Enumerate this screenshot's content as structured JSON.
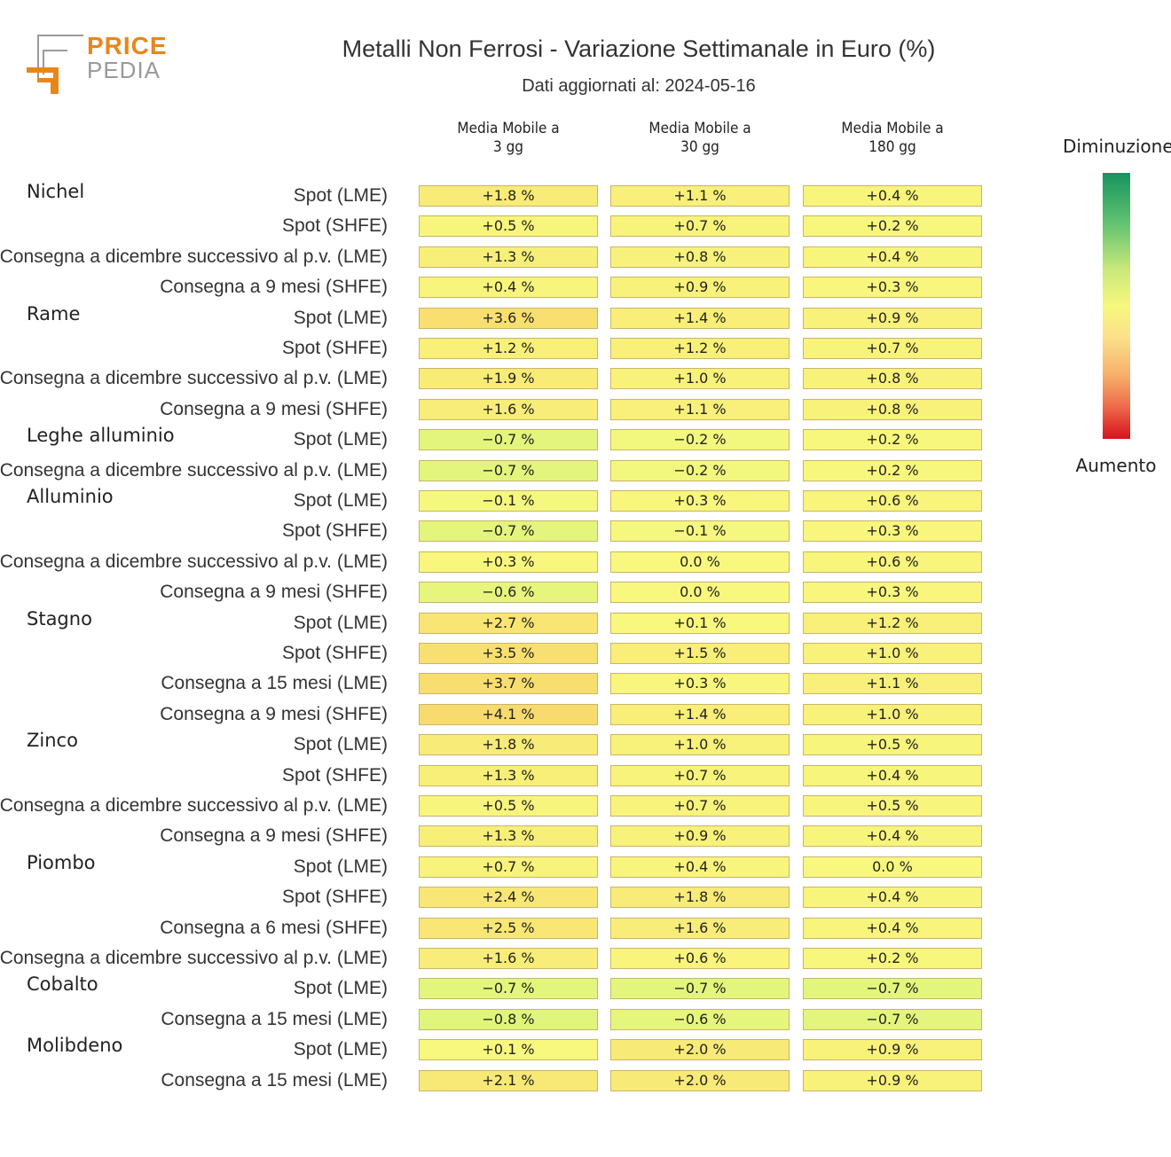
{
  "logo": {
    "line1": "PRICE",
    "line2": "PEDIA"
  },
  "chart_data": {
    "type": "table",
    "title": "Metalli Non Ferrosi - Variazione Settimanale in Euro (%)",
    "subtitle": "Dati aggiornati al: 2024-05-16",
    "columns": [
      "Media Mobile a\n3 gg",
      "Media Mobile a\n30 gg",
      "Media Mobile a\n180 gg"
    ],
    "legend": {
      "top": "Diminuzione",
      "bottom": "Aumento"
    },
    "rows": [
      {
        "group": "Nichel",
        "label": "Spot (LME)",
        "values": [
          "+1.8 %",
          "+1.1 %",
          "+0.4 %"
        ],
        "nums": [
          1.8,
          1.1,
          0.4
        ]
      },
      {
        "group": "",
        "label": "Spot (SHFE)",
        "values": [
          "+0.5 %",
          "+0.7 %",
          "+0.2 %"
        ],
        "nums": [
          0.5,
          0.7,
          0.2
        ]
      },
      {
        "group": "",
        "label": "Consegna a dicembre successivo al p.v. (LME)",
        "values": [
          "+1.3 %",
          "+0.8 %",
          "+0.4 %"
        ],
        "nums": [
          1.3,
          0.8,
          0.4
        ]
      },
      {
        "group": "",
        "label": "Consegna a 9 mesi (SHFE)",
        "values": [
          "+0.4 %",
          "+0.9 %",
          "+0.3 %"
        ],
        "nums": [
          0.4,
          0.9,
          0.3
        ]
      },
      {
        "group": "Rame",
        "label": "Spot (LME)",
        "values": [
          "+3.6 %",
          "+1.4 %",
          "+0.9 %"
        ],
        "nums": [
          3.6,
          1.4,
          0.9
        ]
      },
      {
        "group": "",
        "label": "Spot (SHFE)",
        "values": [
          "+1.2 %",
          "+1.2 %",
          "+0.7 %"
        ],
        "nums": [
          1.2,
          1.2,
          0.7
        ]
      },
      {
        "group": "",
        "label": "Consegna a dicembre successivo al p.v. (LME)",
        "values": [
          "+1.9 %",
          "+1.0 %",
          "+0.8 %"
        ],
        "nums": [
          1.9,
          1.0,
          0.8
        ]
      },
      {
        "group": "",
        "label": "Consegna a 9 mesi (SHFE)",
        "values": [
          "+1.6 %",
          "+1.1 %",
          "+0.8 %"
        ],
        "nums": [
          1.6,
          1.1,
          0.8
        ]
      },
      {
        "group": "Leghe alluminio",
        "label": "Spot (LME)",
        "values": [
          "−0.7 %",
          "−0.2 %",
          "+0.2 %"
        ],
        "nums": [
          -0.7,
          -0.2,
          0.2
        ]
      },
      {
        "group": "",
        "label": "Consegna a dicembre successivo al p.v. (LME)",
        "values": [
          "−0.7 %",
          "−0.2 %",
          "+0.2 %"
        ],
        "nums": [
          -0.7,
          -0.2,
          0.2
        ]
      },
      {
        "group": "Alluminio",
        "label": "Spot (LME)",
        "values": [
          "−0.1 %",
          "+0.3 %",
          "+0.6 %"
        ],
        "nums": [
          -0.1,
          0.3,
          0.6
        ]
      },
      {
        "group": "",
        "label": "Spot (SHFE)",
        "values": [
          "−0.7 %",
          "−0.1 %",
          "+0.3 %"
        ],
        "nums": [
          -0.7,
          -0.1,
          0.3
        ]
      },
      {
        "group": "",
        "label": "Consegna a dicembre successivo al p.v. (LME)",
        "values": [
          "+0.3 %",
          "0.0 %",
          "+0.6 %"
        ],
        "nums": [
          0.3,
          0.0,
          0.6
        ]
      },
      {
        "group": "",
        "label": "Consegna a 9 mesi (SHFE)",
        "values": [
          "−0.6 %",
          "0.0 %",
          "+0.3 %"
        ],
        "nums": [
          -0.6,
          0.0,
          0.3
        ]
      },
      {
        "group": "Stagno",
        "label": "Spot (LME)",
        "values": [
          "+2.7 %",
          "+0.1 %",
          "+1.2 %"
        ],
        "nums": [
          2.7,
          0.1,
          1.2
        ]
      },
      {
        "group": "",
        "label": "Spot (SHFE)",
        "values": [
          "+3.5 %",
          "+1.5 %",
          "+1.0 %"
        ],
        "nums": [
          3.5,
          1.5,
          1.0
        ]
      },
      {
        "group": "",
        "label": "Consegna a 15 mesi (LME)",
        "values": [
          "+3.7 %",
          "+0.3 %",
          "+1.1 %"
        ],
        "nums": [
          3.7,
          0.3,
          1.1
        ]
      },
      {
        "group": "",
        "label": "Consegna a 9 mesi (SHFE)",
        "values": [
          "+4.1 %",
          "+1.4 %",
          "+1.0 %"
        ],
        "nums": [
          4.1,
          1.4,
          1.0
        ]
      },
      {
        "group": "Zinco",
        "label": "Spot (LME)",
        "values": [
          "+1.8 %",
          "+1.0 %",
          "+0.5 %"
        ],
        "nums": [
          1.8,
          1.0,
          0.5
        ]
      },
      {
        "group": "",
        "label": "Spot (SHFE)",
        "values": [
          "+1.3 %",
          "+0.7 %",
          "+0.4 %"
        ],
        "nums": [
          1.3,
          0.7,
          0.4
        ]
      },
      {
        "group": "",
        "label": "Consegna a dicembre successivo al p.v. (LME)",
        "values": [
          "+0.5 %",
          "+0.7 %",
          "+0.5 %"
        ],
        "nums": [
          0.5,
          0.7,
          0.5
        ]
      },
      {
        "group": "",
        "label": "Consegna a 9 mesi (SHFE)",
        "values": [
          "+1.3 %",
          "+0.9 %",
          "+0.4 %"
        ],
        "nums": [
          1.3,
          0.9,
          0.4
        ]
      },
      {
        "group": "Piombo",
        "label": "Spot (LME)",
        "values": [
          "+0.7 %",
          "+0.4 %",
          "0.0 %"
        ],
        "nums": [
          0.7,
          0.4,
          0.0
        ]
      },
      {
        "group": "",
        "label": "Spot (SHFE)",
        "values": [
          "+2.4 %",
          "+1.8 %",
          "+0.4 %"
        ],
        "nums": [
          2.4,
          1.8,
          0.4
        ]
      },
      {
        "group": "",
        "label": "Consegna a 6 mesi (SHFE)",
        "values": [
          "+2.5 %",
          "+1.6 %",
          "+0.4 %"
        ],
        "nums": [
          2.5,
          1.6,
          0.4
        ]
      },
      {
        "group": "",
        "label": "Consegna a dicembre successivo al p.v. (LME)",
        "values": [
          "+1.6 %",
          "+0.6 %",
          "+0.2 %"
        ],
        "nums": [
          1.6,
          0.6,
          0.2
        ]
      },
      {
        "group": "Cobalto",
        "label": "Spot (LME)",
        "values": [
          "−0.7 %",
          "−0.7 %",
          "−0.7 %"
        ],
        "nums": [
          -0.7,
          -0.7,
          -0.7
        ]
      },
      {
        "group": "",
        "label": "Consegna a 15 mesi (LME)",
        "values": [
          "−0.8 %",
          "−0.6 %",
          "−0.7 %"
        ],
        "nums": [
          -0.8,
          -0.6,
          -0.7
        ]
      },
      {
        "group": "Molibdeno",
        "label": "Spot (LME)",
        "values": [
          "+0.1 %",
          "+2.0 %",
          "+0.9 %"
        ],
        "nums": [
          0.1,
          2.0,
          0.9
        ]
      },
      {
        "group": "",
        "label": "Consegna a 15 mesi (LME)",
        "values": [
          "+2.1 %",
          "+2.0 %",
          "+0.9 %"
        ],
        "nums": [
          2.1,
          2.0,
          0.9
        ]
      }
    ],
    "colorscale": {
      "min": -5,
      "mid": 0,
      "max": 5,
      "low_color": "#17945f",
      "mid_color": "#f8f87e",
      "high_color": "#d7101e"
    }
  }
}
